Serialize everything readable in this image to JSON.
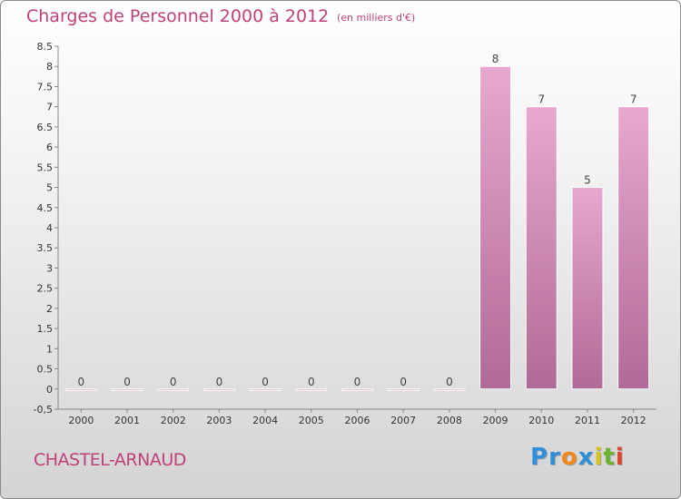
{
  "header": {
    "title": "Charges de Personnel 2000 à 2012",
    "subtitle": "(en milliers d'€)"
  },
  "commune": "CHASTEL-ARNAUD",
  "logo": {
    "text": "Proxiti",
    "letters": [
      {
        "ch": "P",
        "color": "#2f8fd8"
      },
      {
        "ch": "r",
        "color": "#2f8fd8"
      },
      {
        "ch": "o",
        "color": "#f08a1c"
      },
      {
        "ch": "x",
        "color": "#2f8fd8"
      },
      {
        "ch": "i",
        "color": "#d8c21c"
      },
      {
        "ch": "t",
        "color": "#6ab42d"
      },
      {
        "ch": "i",
        "color": "#e0452a"
      }
    ]
  },
  "colors": {
    "bar_top": "#e8a8cf",
    "bar_bottom": "#b06a97",
    "axis": "#888888",
    "tick_text": "#333333",
    "value_text": "#444444"
  },
  "chart_data": {
    "type": "bar",
    "categories": [
      "2000",
      "2001",
      "2002",
      "2003",
      "2004",
      "2005",
      "2006",
      "2007",
      "2008",
      "2009",
      "2010",
      "2011",
      "2012"
    ],
    "values": [
      0,
      0,
      0,
      0,
      0,
      0,
      0,
      0,
      0,
      8,
      7,
      5,
      7
    ],
    "value_labels": [
      "0",
      "0",
      "0",
      "0",
      "0",
      "0",
      "0",
      "0",
      "0",
      "8",
      "7",
      "5",
      "7"
    ],
    "ylim": [
      -0.5,
      8.5
    ],
    "yticks": [
      "-0,5",
      "0",
      "0.5",
      "1",
      "1.5",
      "2",
      "2.5",
      "3",
      "3.5",
      "4",
      "4.5",
      "5",
      "5.5",
      "6",
      "6.5",
      "7",
      "7.5",
      "8",
      "8.5"
    ],
    "ytick_values": [
      -0.5,
      0,
      0.5,
      1,
      1.5,
      2,
      2.5,
      3,
      3.5,
      4,
      4.5,
      5,
      5.5,
      6,
      6.5,
      7,
      7.5,
      8,
      8.5
    ],
    "title": "Charges de Personnel 2000 à 2012",
    "xlabel": "",
    "ylabel": "",
    "grid": false
  }
}
